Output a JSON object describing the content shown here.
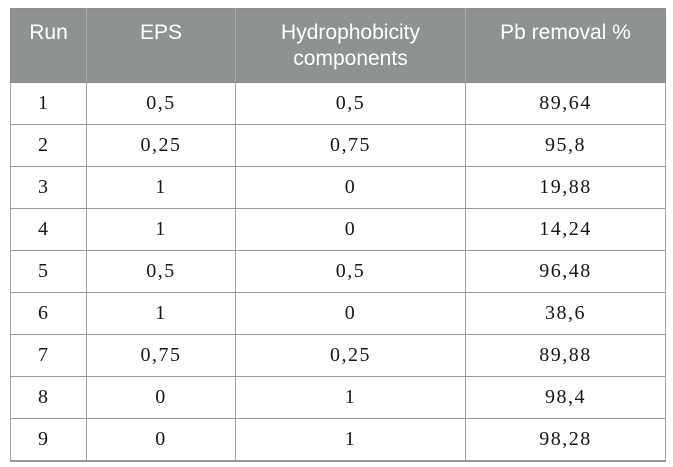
{
  "page": {
    "background_color": "#ffffff"
  },
  "colors": {
    "header_background": "#8e9290",
    "header_text": "#ffffff",
    "header_divider": "#a6aca8",
    "body_text": "#161616",
    "grid_line": "#9a9a9a",
    "outer_border": "#8d8d8d"
  },
  "table": {
    "columns": [
      {
        "id": "run",
        "label": "Run"
      },
      {
        "id": "eps",
        "label": "EPS"
      },
      {
        "id": "hydrophobicity",
        "label": "Hydrophobicity components"
      },
      {
        "id": "pb_removal",
        "label": "Pb removal %"
      }
    ],
    "rows": [
      [
        "1",
        "0,5",
        "0,5",
        "89,64"
      ],
      [
        "2",
        "0,25",
        "0,75",
        "95,8"
      ],
      [
        "3",
        "1",
        "0",
        "19,88"
      ],
      [
        "4",
        "1",
        "0",
        "14,24"
      ],
      [
        "5",
        "0,5",
        "0,5",
        "96,48"
      ],
      [
        "6",
        "1",
        "0",
        "38,6"
      ],
      [
        "7",
        "0,75",
        "0,25",
        "89,88"
      ],
      [
        "8",
        "0",
        "1",
        "98,4"
      ],
      [
        "9",
        "0",
        "1",
        "98,28"
      ]
    ]
  }
}
